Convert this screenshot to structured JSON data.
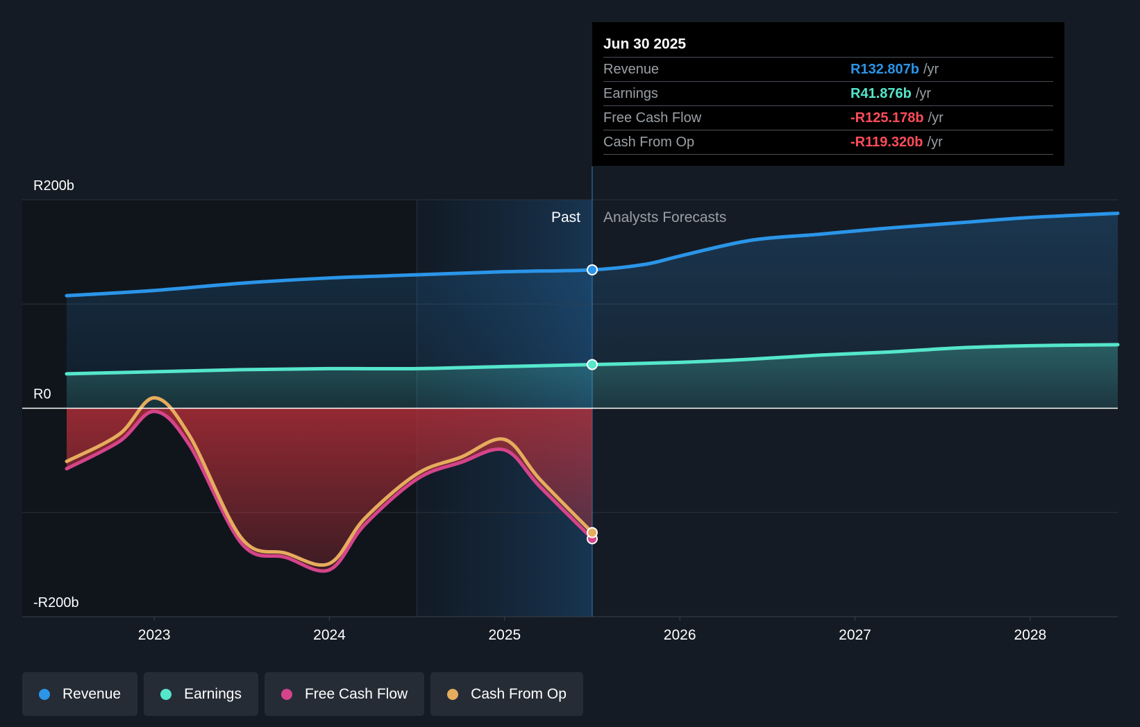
{
  "tooltip": {
    "date": "Jun 30 2025",
    "rows": [
      {
        "label": "Revenue",
        "value": "R132.807b",
        "unit": "/yr",
        "color": "#2b95e8"
      },
      {
        "label": "Earnings",
        "value": "R41.876b",
        "unit": "/yr",
        "color": "#55e6cc"
      },
      {
        "label": "Free Cash Flow",
        "value": "-R125.178b",
        "unit": "/yr",
        "color": "#ff4d5a"
      },
      {
        "label": "Cash From Op",
        "value": "-R119.320b",
        "unit": "/yr",
        "color": "#ff4d5a"
      }
    ]
  },
  "legend": [
    {
      "label": "Revenue",
      "color": "#2b95e8"
    },
    {
      "label": "Earnings",
      "color": "#55e6cc"
    },
    {
      "label": "Free Cash Flow",
      "color": "#d4448a"
    },
    {
      "label": "Cash From Op",
      "color": "#e6ac5e"
    }
  ],
  "chart_data": {
    "type": "line",
    "title": "",
    "xlabel": "",
    "ylabel": "",
    "ylim": [
      -200,
      200
    ],
    "xlim": [
      2022.5,
      2028.5
    ],
    "unit": "R billions",
    "y_tick_labels": [
      {
        "value": 200,
        "label": "R200b"
      },
      {
        "value": 0,
        "label": "R0"
      },
      {
        "value": -200,
        "label": "-R200b"
      }
    ],
    "x_tick_labels": [
      {
        "value": 2023,
        "label": "2023"
      },
      {
        "value": 2024,
        "label": "2024"
      },
      {
        "value": 2025,
        "label": "2025"
      },
      {
        "value": 2026,
        "label": "2026"
      },
      {
        "value": 2027,
        "label": "2027"
      },
      {
        "value": 2028,
        "label": "2028"
      }
    ],
    "past_label": "Past",
    "forecast_label": "Analysts Forecasts",
    "divider_x": 2025.5,
    "highlight_start_x": 2024.5,
    "series": [
      {
        "name": "Revenue",
        "color": "#2b95e8",
        "points": [
          [
            2022.5,
            108
          ],
          [
            2023,
            113
          ],
          [
            2023.5,
            120
          ],
          [
            2024,
            125
          ],
          [
            2024.5,
            128
          ],
          [
            2025,
            131
          ],
          [
            2025.5,
            132.8
          ],
          [
            2025.8,
            138
          ],
          [
            2026,
            146
          ],
          [
            2026.4,
            161
          ],
          [
            2026.8,
            167
          ],
          [
            2027.2,
            173
          ],
          [
            2027.6,
            178
          ],
          [
            2028,
            183
          ],
          [
            2028.5,
            187
          ]
        ]
      },
      {
        "name": "Earnings",
        "color": "#55e6cc",
        "points": [
          [
            2022.5,
            33
          ],
          [
            2023,
            35
          ],
          [
            2023.5,
            37
          ],
          [
            2024,
            38
          ],
          [
            2024.5,
            38
          ],
          [
            2025,
            40
          ],
          [
            2025.5,
            41.9
          ],
          [
            2026,
            44
          ],
          [
            2026.4,
            47
          ],
          [
            2026.8,
            51
          ],
          [
            2027.2,
            54
          ],
          [
            2027.6,
            58
          ],
          [
            2028,
            60
          ],
          [
            2028.5,
            61
          ]
        ]
      },
      {
        "name": "Free Cash Flow",
        "color": "#d4448a",
        "points": [
          [
            2022.5,
            -58
          ],
          [
            2022.8,
            -32
          ],
          [
            2023,
            -3
          ],
          [
            2023.2,
            -35
          ],
          [
            2023.5,
            -130
          ],
          [
            2023.75,
            -143
          ],
          [
            2024,
            -155
          ],
          [
            2024.2,
            -112
          ],
          [
            2024.5,
            -68
          ],
          [
            2024.75,
            -52
          ],
          [
            2025,
            -40
          ],
          [
            2025.2,
            -75
          ],
          [
            2025.5,
            -125.2
          ]
        ]
      },
      {
        "name": "Cash From Op",
        "color": "#e6ac5e",
        "points": [
          [
            2022.5,
            -51
          ],
          [
            2022.8,
            -25
          ],
          [
            2023,
            10
          ],
          [
            2023.2,
            -26
          ],
          [
            2023.5,
            -125
          ],
          [
            2023.75,
            -139
          ],
          [
            2024,
            -149
          ],
          [
            2024.2,
            -106
          ],
          [
            2024.5,
            -63
          ],
          [
            2024.75,
            -47
          ],
          [
            2025,
            -30
          ],
          [
            2025.2,
            -68
          ],
          [
            2025.5,
            -119.3
          ]
        ]
      }
    ]
  }
}
